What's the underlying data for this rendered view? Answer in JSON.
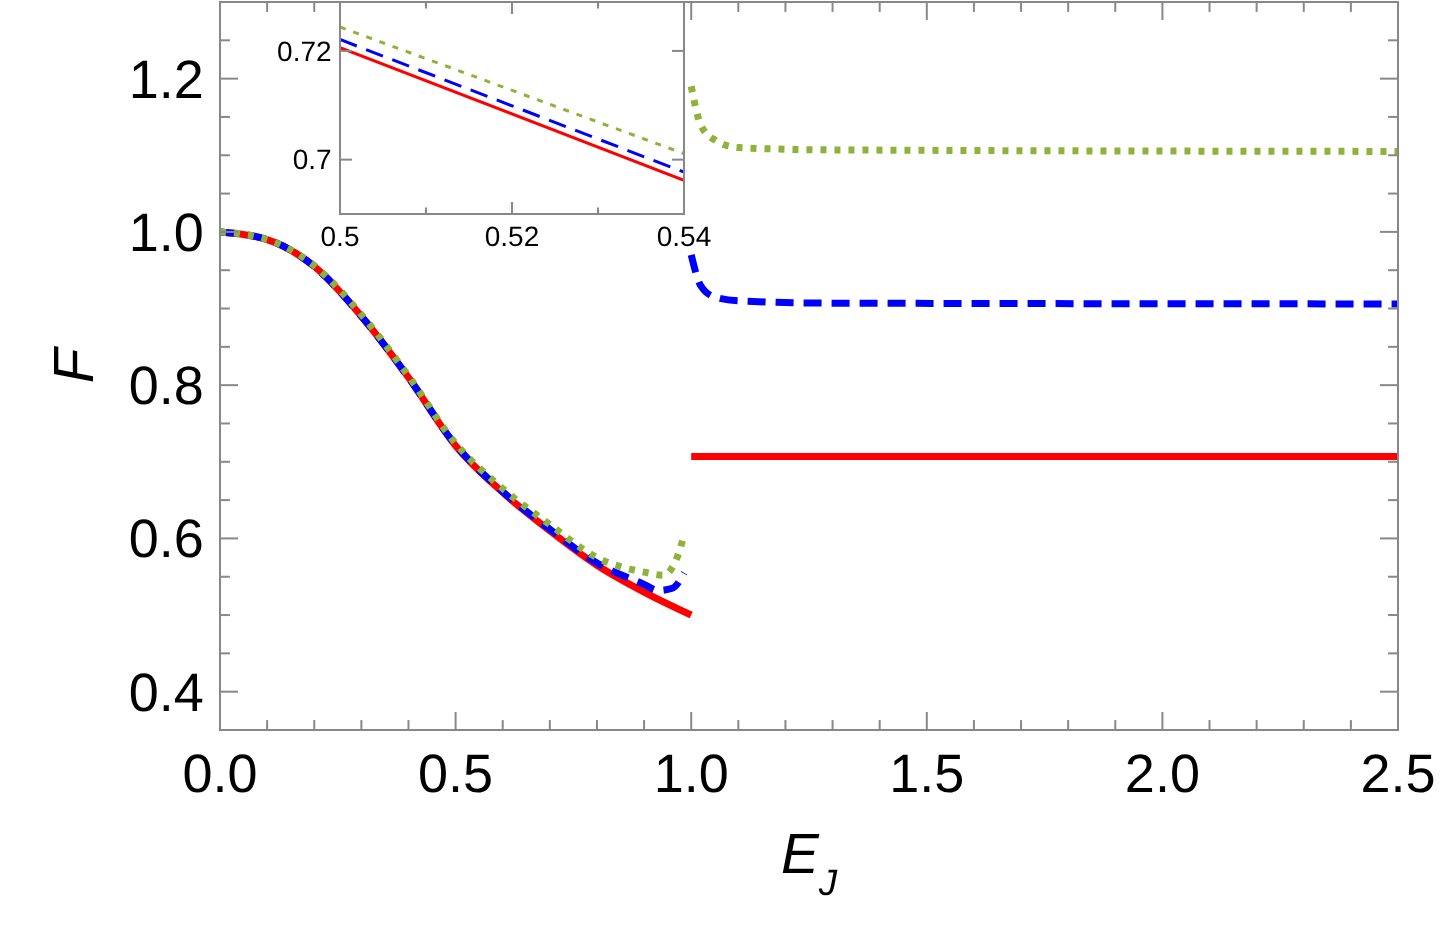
{
  "chart_data": [
    {
      "type": "line",
      "xlabel": "E$_{J}$",
      "ylabel": "F",
      "xlim": [
        0,
        2.5
      ],
      "ylim": [
        0.35,
        1.3
      ],
      "xticks": [
        {
          "value": 0,
          "label": "0.0"
        },
        {
          "value": 0.1,
          "label": null
        },
        {
          "value": 0.2,
          "label": null
        },
        {
          "value": 0.3,
          "label": null
        },
        {
          "value": 0.4,
          "label": null
        },
        {
          "value": 0.5,
          "label": "0.5"
        },
        {
          "value": 0.6,
          "label": null
        },
        {
          "value": 0.7,
          "label": null
        },
        {
          "value": 0.8,
          "label": null
        },
        {
          "value": 0.9,
          "label": null
        },
        {
          "value": 1,
          "label": "1.0"
        },
        {
          "value": 1.1,
          "label": null
        },
        {
          "value": 1.2,
          "label": null
        },
        {
          "value": 1.3,
          "label": null
        },
        {
          "value": 1.4,
          "label": null
        },
        {
          "value": 1.5,
          "label": "1.5"
        },
        {
          "value": 1.6,
          "label": null
        },
        {
          "value": 1.7,
          "label": null
        },
        {
          "value": 1.8,
          "label": null
        },
        {
          "value": 1.9,
          "label": null
        },
        {
          "value": 2,
          "label": "2.0"
        },
        {
          "value": 2.1,
          "label": null
        },
        {
          "value": 2.2,
          "label": null
        },
        {
          "value": 2.3,
          "label": null
        },
        {
          "value": 2.4,
          "label": null
        },
        {
          "value": 2.5,
          "label": "2.5"
        }
      ],
      "yticks": [
        {
          "value": 0.4,
          "label": "0.4"
        },
        {
          "value": 0.45,
          "label": null
        },
        {
          "value": 0.5,
          "label": null
        },
        {
          "value": 0.55,
          "label": null
        },
        {
          "value": 0.6,
          "label": "0.6"
        },
        {
          "value": 0.65,
          "label": null
        },
        {
          "value": 0.7,
          "label": null
        },
        {
          "value": 0.75,
          "label": null
        },
        {
          "value": 0.8,
          "label": "0.8"
        },
        {
          "value": 0.85,
          "label": null
        },
        {
          "value": 0.9,
          "label": null
        },
        {
          "value": 0.95,
          "label": null
        },
        {
          "value": 1,
          "label": "1.0"
        },
        {
          "value": 1.05,
          "label": null
        },
        {
          "value": 1.1,
          "label": null
        },
        {
          "value": 1.15,
          "label": null
        },
        {
          "value": 1.2,
          "label": "1.2"
        },
        {
          "value": 1.25,
          "label": null
        }
      ],
      "grid": false,
      "marker": "none",
      "series": [
        {
          "color": "#ff0000",
          "line_style": "solid",
          "x": [
            0,
            0.1,
            0.2,
            0.3,
            0.4,
            0.5,
            0.6,
            0.7,
            0.8,
            0.9,
            1
          ],
          "values": [
            1,
            0.99,
            0.955,
            0.89,
            0.81,
            0.721,
            0.66,
            0.61,
            0.565,
            0.53,
            0.5
          ]
        },
        {
          "color": "#ff0000",
          "line_style": "solid",
          "x": [
            1,
            2.5
          ],
          "values": [
            0.707,
            0.707
          ]
        },
        {
          "color": "#0000ff",
          "line_style": "dashed",
          "x": [
            0,
            0.1,
            0.2,
            0.3,
            0.4,
            0.5,
            0.6,
            0.7,
            0.8,
            0.9,
            0.93,
            0.96,
            0.985
          ],
          "values": [
            1,
            0.99,
            0.955,
            0.89,
            0.81,
            0.722,
            0.661,
            0.612,
            0.568,
            0.54,
            0.532,
            0.535,
            0.555
          ]
        },
        {
          "color": "#0000ff",
          "line_style": "dashed",
          "x": [
            1,
            1.02,
            1.05,
            1.1,
            1.3,
            2.5
          ],
          "values": [
            0.97,
            0.93,
            0.915,
            0.91,
            0.907,
            0.906
          ]
        },
        {
          "color": "#8db33a",
          "line_style": "dotted",
          "x": [
            0,
            0.1,
            0.2,
            0.3,
            0.4,
            0.5,
            0.6,
            0.7,
            0.8,
            0.9,
            0.94,
            0.97,
            0.985
          ],
          "values": [
            1,
            0.99,
            0.956,
            0.892,
            0.812,
            0.724,
            0.665,
            0.618,
            0.575,
            0.556,
            0.552,
            0.575,
            0.605
          ]
        },
        {
          "color": "#8db33a",
          "line_style": "dotted",
          "x": [
            1,
            1.02,
            1.05,
            1.1,
            1.3,
            2.5
          ],
          "values": [
            1.19,
            1.14,
            1.12,
            1.11,
            1.107,
            1.105
          ]
        }
      ]
    },
    {
      "type": "line",
      "xlim": [
        0.5,
        0.54
      ],
      "ylim": [
        0.69,
        0.729
      ],
      "xticks": [
        0.5,
        {
          "value": 0.51,
          "label": null
        },
        0.52,
        {
          "value": 0.53,
          "label": null
        },
        0.54
      ],
      "yticks": [
        0.7,
        0.72
      ],
      "grid": false,
      "marker": "none",
      "series": [
        {
          "color": "#ff0000",
          "line_style": "solid",
          "x": [
            0.5,
            0.54
          ],
          "values": [
            0.7206,
            0.6962
          ]
        },
        {
          "color": "#0000ff",
          "line_style": "dashed",
          "x": [
            0.5,
            0.54
          ],
          "values": [
            0.7221,
            0.6977
          ]
        },
        {
          "color": "#8db33a",
          "line_style": "dotted",
          "x": [
            0.5,
            0.54
          ],
          "values": [
            0.7244,
            0.7011
          ]
        }
      ]
    }
  ]
}
